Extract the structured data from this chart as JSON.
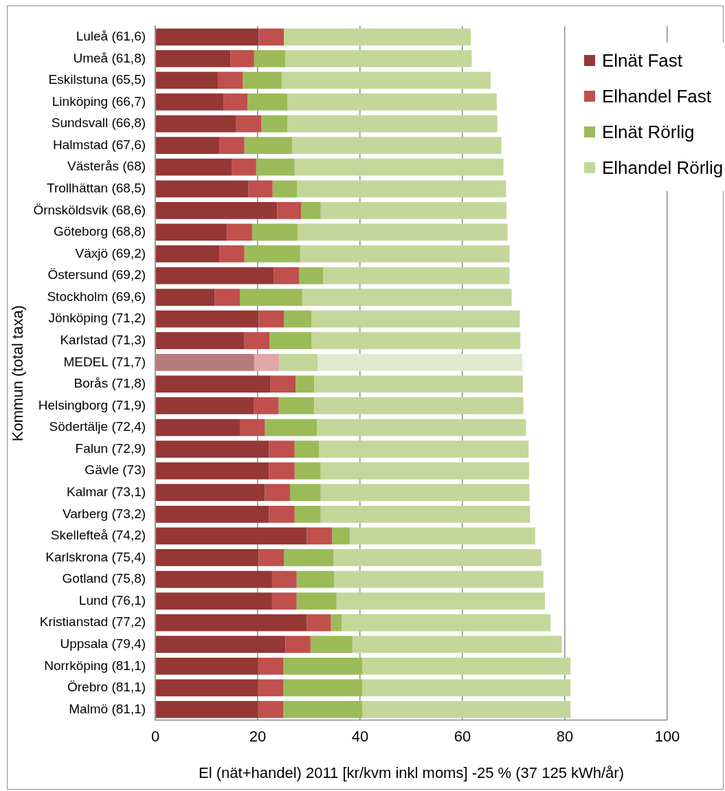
{
  "chart_data": {
    "type": "bar",
    "orientation": "horizontal",
    "stacked": true,
    "xlabel": "El (nät+handel) 2011 [kr/kvm inkl moms] -25 % (37 125 kWh/år)",
    "ylabel": "Kommun (total taxa)",
    "categories": [
      "Luleå (61,6)",
      "Umeå (61,8)",
      "Eskilstuna (65,5)",
      "Linköping (66,7)",
      "Sundsvall (66,8)",
      "Halmstad (67,6)",
      "Västerås (68)",
      "Trollhättan (68,5)",
      "Örnsköldsvik (68,6)",
      "Göteborg (68,8)",
      "Växjö (69,2)",
      "Östersund (69,2)",
      "Stockholm (69,6)",
      "Jönköping (71,2)",
      "Karlstad (71,3)",
      "MEDEL (71,7)",
      "Borås (71,8)",
      "Helsingborg (71,9)",
      "Södertälje (72,4)",
      "Falun (72,9)",
      "Gävle (73)",
      "Kalmar (73,1)",
      "Varberg (73,2)",
      "Skellefteå (74,2)",
      "Karlskrona (75,4)",
      "Gotland (75,8)",
      "Lund (76,1)",
      "Kristianstad (77,2)",
      "Uppsala (79,4)",
      "Norrköping (81,1)",
      "Örebro (81,1)",
      "Malmö (81,1)"
    ],
    "series": [
      {
        "name": "Elnät Fast",
        "color": "#953735",
        "colors": [
          "#953735",
          "#953735",
          "#953735",
          "#953735",
          "#953735",
          "#953735",
          "#953735",
          "#953735",
          "#953735",
          "#953735",
          "#953735",
          "#953735",
          "#953735",
          "#953735",
          "#953735",
          "#b87c7c",
          "#953735",
          "#953735",
          "#953735",
          "#953735",
          "#953735",
          "#953735",
          "#953735",
          "#953735",
          "#953735",
          "#953735",
          "#953735",
          "#953735",
          "#953735",
          "#953735",
          "#953735",
          "#953735"
        ],
        "values": [
          20.2,
          14.7,
          12.2,
          13.3,
          15.8,
          12.5,
          14.9,
          18.2,
          23.8,
          14.0,
          12.5,
          23.1,
          11.6,
          20.2,
          17.4,
          19.3,
          22.5,
          19.2,
          16.5,
          22.2,
          22.2,
          21.4,
          22.2,
          29.6,
          20.2,
          22.8,
          22.8,
          29.6,
          25.4,
          20.1,
          20.1,
          20.1
        ]
      },
      {
        "name": "Elhandel Fast",
        "color": "#c0504d",
        "colors": [
          "#c0504d",
          "#c0504d",
          "#c0504d",
          "#c0504d",
          "#c0504d",
          "#c0504d",
          "#c0504d",
          "#c0504d",
          "#c0504d",
          "#c0504d",
          "#c0504d",
          "#c0504d",
          "#c0504d",
          "#c0504d",
          "#c0504d",
          "#e0a9a9",
          "#c0504d",
          "#c0504d",
          "#c0504d",
          "#c0504d",
          "#c0504d",
          "#c0504d",
          "#c0504d",
          "#c0504d",
          "#c0504d",
          "#c0504d",
          "#c0504d",
          "#c0504d",
          "#c0504d",
          "#c0504d",
          "#c0504d",
          "#c0504d"
        ],
        "values": [
          4.9,
          4.6,
          4.9,
          4.7,
          4.9,
          4.9,
          4.8,
          4.7,
          4.7,
          4.9,
          4.9,
          5.0,
          4.9,
          4.9,
          4.9,
          4.9,
          4.9,
          4.9,
          4.9,
          5.0,
          5.0,
          4.9,
          5.0,
          4.9,
          4.9,
          4.8,
          4.8,
          4.7,
          4.9,
          4.9,
          4.9,
          4.9
        ]
      },
      {
        "name": "Elnät Rörlig",
        "color": "#9bbb59",
        "colors": [
          "#9bbb59",
          "#9bbb59",
          "#9bbb59",
          "#9bbb59",
          "#9bbb59",
          "#9bbb59",
          "#9bbb59",
          "#9bbb59",
          "#9bbb59",
          "#9bbb59",
          "#9bbb59",
          "#9bbb59",
          "#9bbb59",
          "#9bbb59",
          "#9bbb59",
          "#c3d59a",
          "#9bbb59",
          "#9bbb59",
          "#9bbb59",
          "#9bbb59",
          "#9bbb59",
          "#9bbb59",
          "#9bbb59",
          "#9bbb59",
          "#9bbb59",
          "#9bbb59",
          "#9bbb59",
          "#9bbb59",
          "#9bbb59",
          "#9bbb59",
          "#9bbb59",
          "#9bbb59"
        ],
        "values": [
          0,
          6.1,
          7.6,
          7.8,
          5.1,
          9.3,
          7.5,
          4.8,
          3.8,
          8.9,
          10.9,
          4.7,
          12.2,
          5.4,
          8.2,
          7.5,
          3.6,
          6.9,
          10.2,
          4.8,
          5.1,
          6.0,
          5.1,
          3.5,
          9.7,
          7.3,
          7.8,
          2.1,
          8.2,
          15.4,
          15.4,
          15.4
        ]
      },
      {
        "name": "Elhandel Rörlig",
        "color": "#c4d79b",
        "colors": [
          "#c4d79b",
          "#c4d79b",
          "#c4d79b",
          "#c4d79b",
          "#c4d79b",
          "#c4d79b",
          "#c4d79b",
          "#c4d79b",
          "#c4d79b",
          "#c4d79b",
          "#c4d79b",
          "#c4d79b",
          "#c4d79b",
          "#c4d79b",
          "#c4d79b",
          "#e1ead0",
          "#c4d79b",
          "#c4d79b",
          "#c4d79b",
          "#c4d79b",
          "#c4d79b",
          "#c4d79b",
          "#c4d79b",
          "#c4d79b",
          "#c4d79b",
          "#c4d79b",
          "#c4d79b",
          "#c4d79b",
          "#c4d79b",
          "#c4d79b",
          "#c4d79b",
          "#c4d79b"
        ],
        "values": [
          36.5,
          36.4,
          40.8,
          40.9,
          41.0,
          40.9,
          40.8,
          40.8,
          36.3,
          41.0,
          40.9,
          36.4,
          40.9,
          40.7,
          40.8,
          40.0,
          40.8,
          40.9,
          40.8,
          40.9,
          40.7,
          40.8,
          40.9,
          36.2,
          40.6,
          40.9,
          40.7,
          40.8,
          40.9,
          40.7,
          40.7,
          40.7
        ]
      }
    ],
    "xlim": [
      0,
      100
    ],
    "xticks": [
      0,
      20,
      40,
      60,
      80,
      100
    ],
    "grid": "x",
    "legend": "top right"
  }
}
